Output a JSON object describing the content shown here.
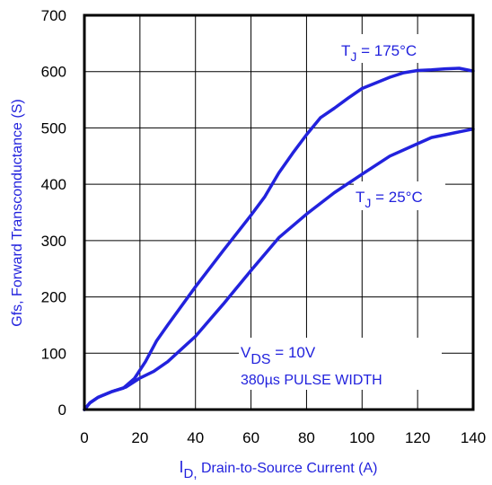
{
  "chart_data": {
    "type": "line",
    "xlabel": {
      "main": "I",
      "sub": "D,",
      "rest": " Drain-to-Source Current (A)"
    },
    "ylabel": "Gfs, Forward Transconductance (S)",
    "xlim": [
      0,
      140
    ],
    "ylim": [
      0,
      700
    ],
    "xticks": [
      "0",
      "20",
      "40",
      "60",
      "80",
      "100",
      "120",
      "140"
    ],
    "yticks": [
      "0",
      "100",
      "200",
      "300",
      "400",
      "500",
      "600",
      "700"
    ],
    "grid": true,
    "series": [
      {
        "name": "TJ = 175°C",
        "x": [
          0,
          2,
          5,
          10,
          14,
          18,
          22,
          26,
          30,
          40,
          50,
          60,
          65,
          70,
          75,
          80,
          85,
          90,
          95,
          100,
          105,
          110,
          115,
          120,
          125,
          130,
          135,
          140
        ],
        "y": [
          0,
          12,
          22,
          32,
          38,
          55,
          85,
          122,
          150,
          218,
          282,
          345,
          378,
          420,
          455,
          488,
          518,
          535,
          553,
          570,
          580,
          590,
          598,
          602,
          603,
          605,
          606,
          601
        ]
      },
      {
        "name": "TJ = 25°C",
        "x": [
          0,
          2,
          5,
          10,
          15,
          20,
          25,
          30,
          40,
          50,
          60,
          70,
          80,
          90,
          100,
          110,
          120,
          125,
          130,
          135,
          140
        ],
        "y": [
          0,
          12,
          22,
          32,
          40,
          56,
          68,
          85,
          130,
          187,
          247,
          305,
          347,
          385,
          418,
          450,
          472,
          483,
          488,
          493,
          498
        ]
      }
    ],
    "annotations": {
      "t175": {
        "main": "T",
        "sub": "J",
        "rest": " = 175°C"
      },
      "t25": {
        "main": "T",
        "sub": "J",
        "rest": " = 25°C"
      },
      "vds": {
        "main": "V",
        "sub": "DS",
        "rest": " = 10V"
      },
      "pulse": "380µs PULSE WIDTH"
    },
    "colors": {
      "line": "#2222dd",
      "axis_text": "#2222dd",
      "grid": "#000000",
      "ticks": "#000000"
    }
  }
}
